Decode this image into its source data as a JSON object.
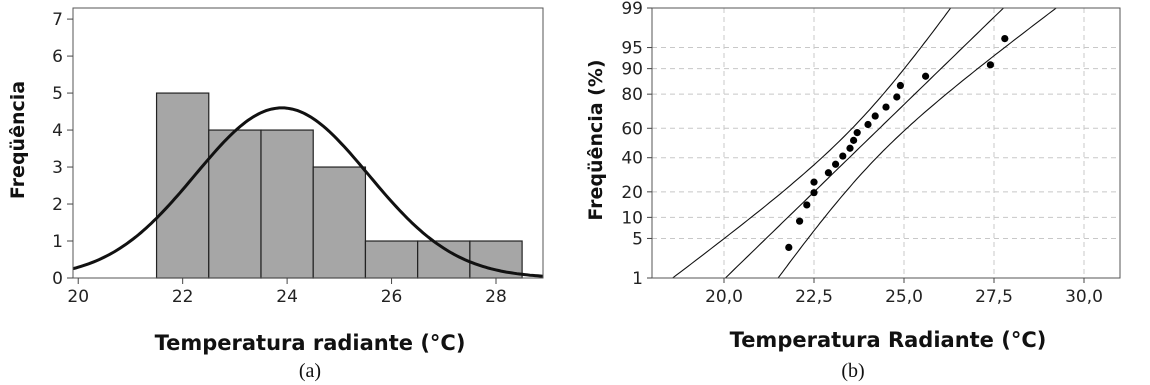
{
  "chart_data": [
    {
      "type": "bar",
      "panel": "(a)",
      "xlabel": "Temperatura radiante (°C)",
      "ylabel": "Freqüência",
      "xlim": [
        19.9,
        28.9
      ],
      "ylim": [
        0,
        7.3
      ],
      "x_ticks": [
        "20",
        "22",
        "24",
        "26",
        "28"
      ],
      "x_tick_values": [
        20,
        22,
        24,
        26,
        28
      ],
      "y_ticks": [
        "0",
        "1",
        "2",
        "3",
        "4",
        "5",
        "6",
        "7"
      ],
      "y_tick_values": [
        0,
        1,
        2,
        3,
        4,
        5,
        6,
        7
      ],
      "bins": [
        {
          "start": 21.5,
          "end": 22.5,
          "count": 5
        },
        {
          "start": 22.5,
          "end": 23.5,
          "count": 4
        },
        {
          "start": 23.5,
          "end": 24.5,
          "count": 4
        },
        {
          "start": 24.5,
          "end": 25.5,
          "count": 3
        },
        {
          "start": 25.5,
          "end": 26.5,
          "count": 1
        },
        {
          "start": 26.5,
          "end": 27.5,
          "count": 1
        },
        {
          "start": 27.5,
          "end": 28.5,
          "count": 1
        }
      ],
      "fit_curve": {
        "type": "normal",
        "mean": 23.9,
        "sd": 1.66,
        "peak": 4.6
      },
      "bar_color": "#a6a6a6",
      "grid": false
    },
    {
      "type": "scatter",
      "panel": "(b)",
      "xlabel": "Temperatura Radiante (°C)",
      "ylabel": "Freqüência (%)",
      "scale_y": "normal probability",
      "xlim": [
        18.0,
        31.0
      ],
      "ylim_percent": [
        1,
        99
      ],
      "x_ticks": [
        "20,0",
        "22,5",
        "25,0",
        "27,5",
        "30,0"
      ],
      "x_tick_values": [
        20.0,
        22.5,
        25.0,
        27.5,
        30.0
      ],
      "y_ticks": [
        "1",
        "5",
        "10",
        "20",
        "40",
        "60",
        "80",
        "90",
        "95",
        "99"
      ],
      "y_tick_values": [
        1,
        5,
        10,
        20,
        40,
        60,
        80,
        90,
        95,
        99
      ],
      "points": [
        {
          "x": 21.8,
          "y": 3.6
        },
        {
          "x": 22.1,
          "y": 8.9
        },
        {
          "x": 22.3,
          "y": 14.3
        },
        {
          "x": 22.5,
          "y": 19.6
        },
        {
          "x": 22.5,
          "y": 25.0
        },
        {
          "x": 22.9,
          "y": 30.4
        },
        {
          "x": 23.1,
          "y": 35.7
        },
        {
          "x": 23.3,
          "y": 41.1
        },
        {
          "x": 23.5,
          "y": 46.4
        },
        {
          "x": 23.6,
          "y": 51.8
        },
        {
          "x": 23.7,
          "y": 57.1
        },
        {
          "x": 24.0,
          "y": 62.5
        },
        {
          "x": 24.2,
          "y": 67.9
        },
        {
          "x": 24.5,
          "y": 73.2
        },
        {
          "x": 24.8,
          "y": 78.6
        },
        {
          "x": 24.9,
          "y": 83.9
        },
        {
          "x": 25.6,
          "y": 87.5
        },
        {
          "x": 27.4,
          "y": 91.1
        },
        {
          "x": 27.8,
          "y": 96.4
        }
      ],
      "fit_line": {
        "mean": 23.9,
        "sd": 1.66
      },
      "confidence_bands": true,
      "grid": "dashed"
    }
  ],
  "captions": {
    "a": "(a)",
    "b": "(b)"
  }
}
